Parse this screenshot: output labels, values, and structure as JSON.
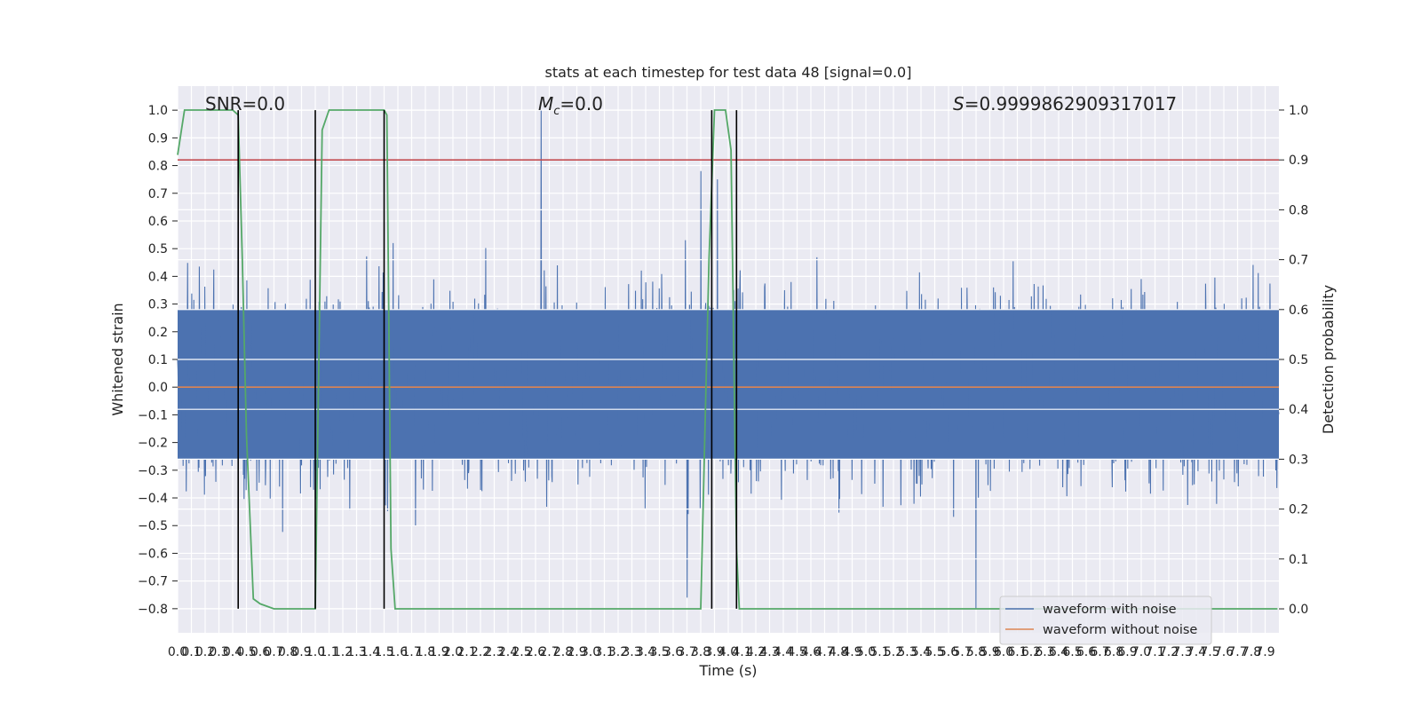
{
  "chart_data": {
    "type": "line",
    "title": "stats at each timestep for test data 48 [signal=0.0]",
    "xlabel": "Time (s)",
    "ylabel": "Whitened strain",
    "y2label": "Detection probability",
    "xlim": [
      0.0,
      8.0
    ],
    "ylim": [
      -0.887,
      1.087
    ],
    "y2lim": [
      -0.048,
      1.048
    ],
    "x_ticks": [
      0.0,
      0.1,
      0.2,
      0.3,
      0.4,
      0.5,
      0.6,
      0.7,
      0.8,
      0.9,
      1.0,
      1.1,
      1.2,
      1.3,
      1.4,
      1.5,
      1.6,
      1.7,
      1.8,
      1.9,
      2.0,
      2.1,
      2.2,
      2.3,
      2.4,
      2.5,
      2.6,
      2.7,
      2.8,
      2.9,
      3.0,
      3.1,
      3.2,
      3.3,
      3.4,
      3.5,
      3.6,
      3.7,
      3.8,
      3.9,
      4.0,
      4.1,
      4.2,
      4.3,
      4.4,
      4.5,
      4.6,
      4.7,
      4.8,
      4.9,
      5.0,
      5.1,
      5.2,
      5.3,
      5.4,
      5.5,
      5.6,
      5.7,
      5.8,
      5.9,
      6.0,
      6.1,
      6.2,
      6.3,
      6.4,
      6.5,
      6.6,
      6.7,
      6.8,
      6.9,
      7.0,
      7.1,
      7.2,
      7.3,
      7.4,
      7.5,
      7.6,
      7.7,
      7.8,
      7.9
    ],
    "y_ticks": [
      -0.8,
      -0.7,
      -0.6,
      -0.5,
      -0.4,
      -0.3,
      -0.2,
      -0.1,
      0.0,
      0.1,
      0.2,
      0.3,
      0.4,
      0.5,
      0.6,
      0.7,
      0.8,
      0.9,
      1.0
    ],
    "y2_ticks": [
      0.0,
      0.1,
      0.2,
      0.3,
      0.4,
      0.5,
      0.6,
      0.7,
      0.8,
      0.9,
      1.0
    ],
    "grid": true,
    "legend_placement": "lower-right",
    "series": [
      {
        "name": "waveform with noise",
        "color": "#4c72b0",
        "axis": "left",
        "style": "dense-noise",
        "noise_sample_rate_hz": 400,
        "typical_amplitude": 0.3,
        "extremes": [
          {
            "x": 2.64,
            "y": 1.0
          },
          {
            "x": 0.44,
            "y": 0.92
          },
          {
            "x": 3.8,
            "y": 0.78
          },
          {
            "x": 3.7,
            "y": -0.76
          },
          {
            "x": 5.8,
            "y": -0.8
          },
          {
            "x": 3.92,
            "y": 0.75
          }
        ]
      },
      {
        "name": "waveform without noise",
        "color": "#dd8452",
        "axis": "left",
        "y_constant": 0.0
      },
      {
        "name": "",
        "color": "#55a868",
        "axis": "right",
        "x": [
          0.0,
          0.05,
          0.1,
          0.15,
          0.2,
          0.3,
          0.4,
          0.44,
          0.47,
          0.5,
          0.55,
          0.6,
          0.7,
          0.8,
          0.9,
          1.0,
          1.05,
          1.1,
          1.15,
          1.2,
          1.3,
          1.4,
          1.5,
          1.52,
          1.55,
          1.58,
          1.6,
          1.65,
          1.7,
          1.8,
          2.0,
          3.0,
          3.8,
          3.86,
          3.9,
          3.94,
          3.98,
          4.02,
          4.06,
          4.08,
          4.12,
          4.2,
          7.99
        ],
        "y": [
          0.91,
          1.0,
          1.0,
          1.0,
          1.0,
          1.0,
          1.0,
          0.99,
          0.7,
          0.35,
          0.02,
          0.01,
          0.0,
          0.0,
          0.0,
          0.0,
          0.96,
          1.0,
          1.0,
          1.0,
          1.0,
          1.0,
          1.0,
          0.99,
          0.12,
          0.0,
          0.0,
          0.0,
          0.0,
          0.0,
          0.0,
          0.0,
          0.0,
          0.7,
          1.0,
          1.0,
          1.0,
          0.92,
          0.12,
          0.0,
          0.0,
          0.0,
          0.0
        ]
      },
      {
        "name": "",
        "color": "#c44e52",
        "axis": "right",
        "y_constant": 0.9
      }
    ],
    "vertical_markers": {
      "color": "#000000",
      "x": [
        0.44,
        1.0,
        1.5,
        3.88,
        4.06
      ],
      "y_from": -0.8,
      "y_to": 1.0
    },
    "annotations": [
      {
        "text": "SNR=0.0",
        "x": 0.49,
        "y": 1.005
      },
      {
        "text": "M_c=0.0",
        "x": 2.85,
        "y": 1.005
      },
      {
        "text": "S=0.9999862909317017",
        "x": 6.5,
        "y": 1.005
      }
    ]
  },
  "legend": {
    "noise_label": "waveform with noise",
    "clean_label": "waveform without noise"
  },
  "annotation_text": {
    "snr": "SNR=0.0",
    "mc_symbol": "M",
    "mc_sub": "c",
    "mc_value": "=0.0",
    "s_symbol": "S",
    "s_value": "=0.9999862909317017"
  },
  "colors": {
    "plot_bg": "#eaeaf2",
    "grid": "#ffffff"
  }
}
